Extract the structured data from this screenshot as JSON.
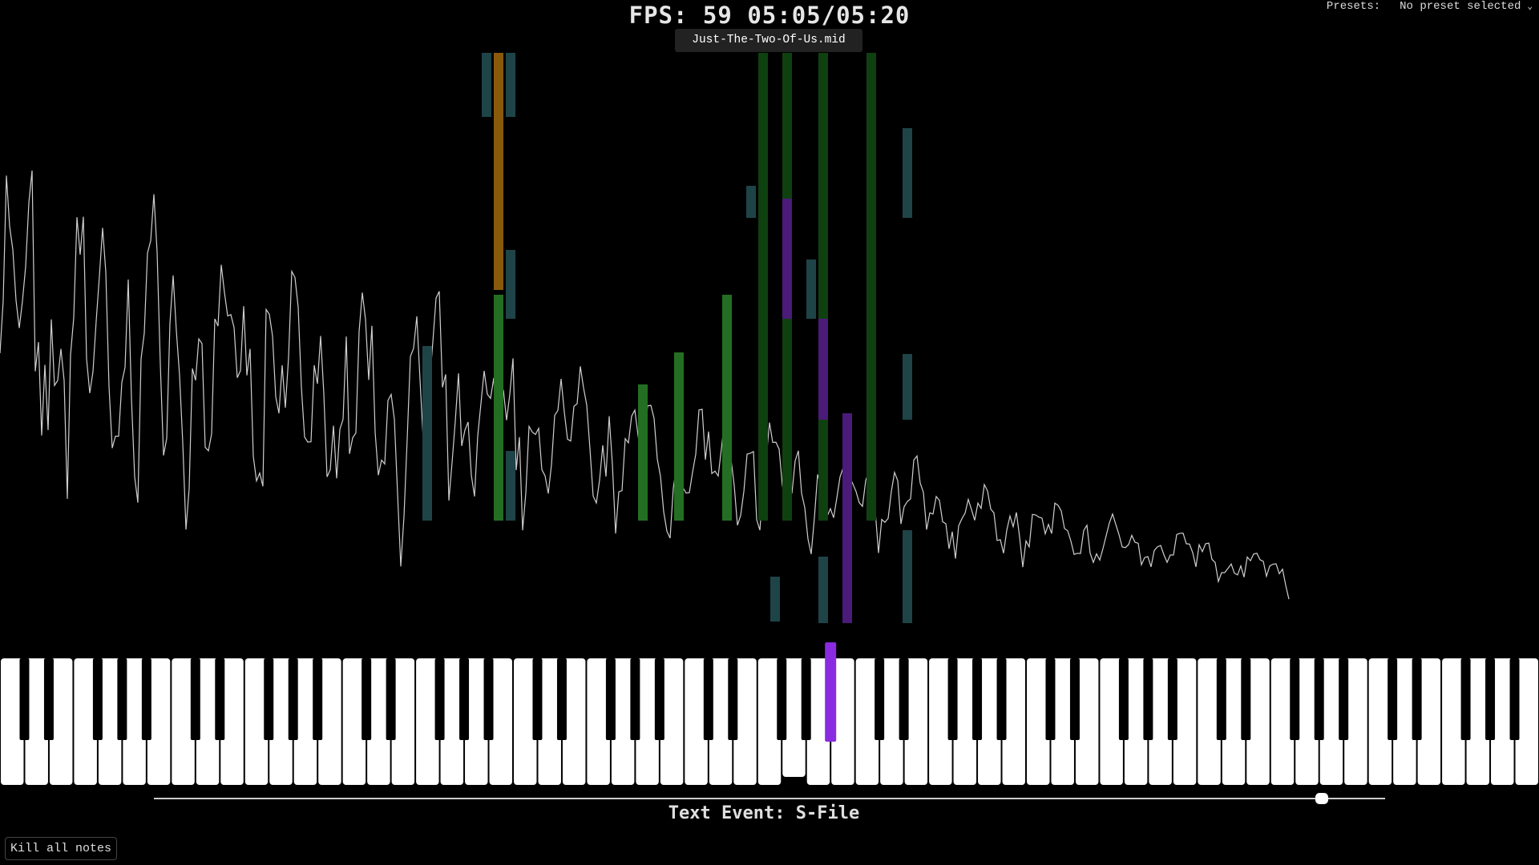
{
  "header": {
    "fps_label": "FPS:",
    "fps_value": "59",
    "time_position": "05:05/05:20",
    "file_name": "Just-The-Two-Of-Us.mid"
  },
  "presets": {
    "label": "Presets:",
    "selected": "No preset selected",
    "chevron_icon": "chevron-down-icon"
  },
  "playback": {
    "progress_fraction": 0.95,
    "current": "05:05",
    "total": "05:20"
  },
  "text_event": "Text Event: S-File",
  "controls": {
    "kill_all_notes": "Kill all notes"
  },
  "colors": {
    "background": "#000000",
    "waveform": "#cfcfcf",
    "orange": "#8a5a0c",
    "green": "#246e24",
    "dark_green": "#0f4010",
    "teal": "#1e4448",
    "purple": "#4a1b78",
    "active_purple": "#8a2be2"
  },
  "keyboard": {
    "pressed_black_keys": [
      "A#3"
    ],
    "pressed_white_keys": [
      "C4"
    ],
    "active_highlight_keys": [
      "G#4"
    ]
  }
}
